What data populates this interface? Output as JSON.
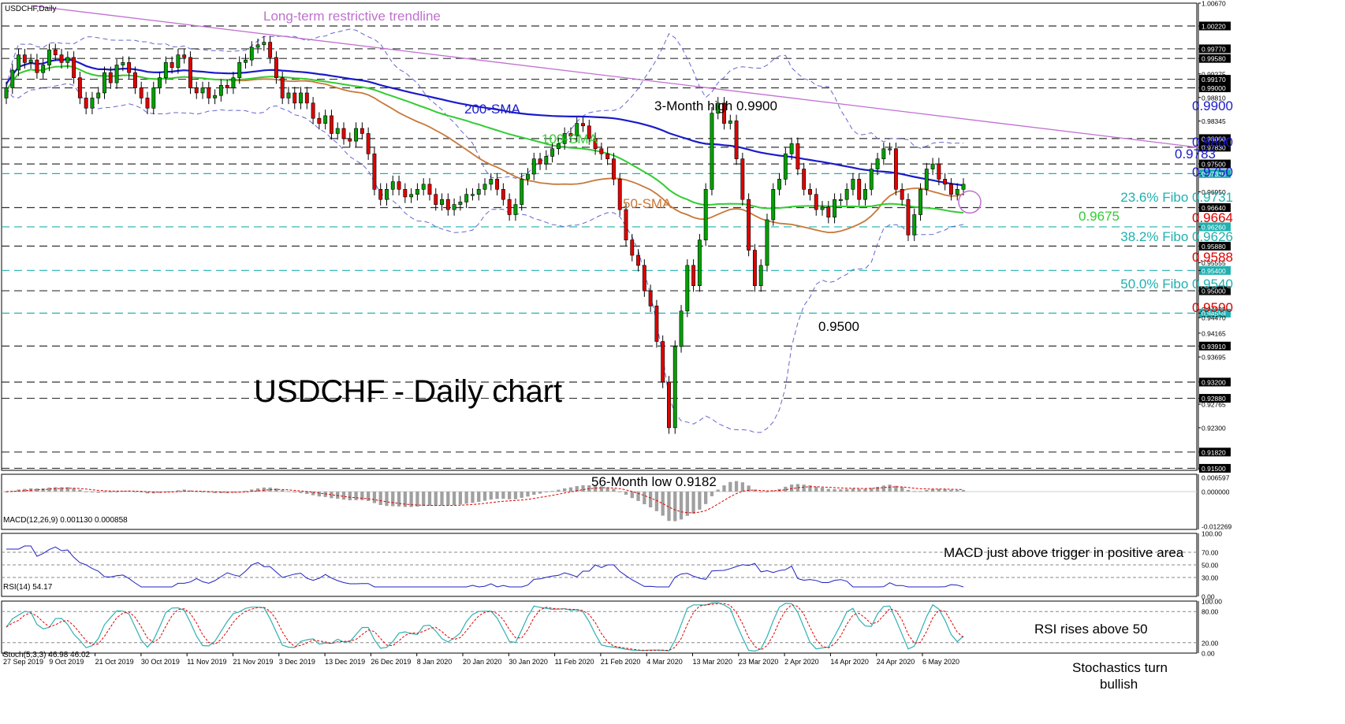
{
  "window": {
    "symbol_label": "USDCHF,Daily"
  },
  "colors": {
    "background": "#ffffff",
    "axis": "#000000",
    "bull_candle": "#00a000",
    "bear_candle": "#e00000",
    "sma200": "#1a1acc",
    "sma100": "#33cc33",
    "sma50": "#c87838",
    "trendline": "#c070d0",
    "bollinger": "#6666cc",
    "level_line": "#333333",
    "fibo_line": "#20b0b0",
    "macd_hist": "#a0a0a0",
    "macd_signal": "#e00000",
    "rsi_line": "#2020c0",
    "stoch_main": "#30b0b0",
    "stoch_signal": "#e00000",
    "price_blue": "#1a1acc",
    "price_red": "#e00000",
    "fibo_text": "#20b0b0",
    "green_text": "#33cc33",
    "orange_text": "#c87838",
    "purple_text": "#c070d0",
    "circle": "#c070d0"
  },
  "chart_data": [
    {
      "type": "candlestick",
      "title": "USDCHF - Daily chart",
      "symbol": "USDCHF,Daily",
      "ylim": [
        0.9146,
        1.0067
      ],
      "x_tick_labels": [
        "27 Sep 2019",
        "9 Oct 2019",
        "21 Oct 2019",
        "30 Oct 2019",
        "11 Nov 2019",
        "21 Nov 2019",
        "3 Dec 2019",
        "13 Dec 2019",
        "26 Dec 2019",
        "8 Jan 2020",
        "20 Jan 2020",
        "30 Jan 2020",
        "11 Feb 2020",
        "21 Feb 2020",
        "4 Mar 2020",
        "13 Mar 2020",
        "23 Mar 2020",
        "2 Apr 2020",
        "14 Apr 2020",
        "24 Apr 2020",
        "6 May 2020"
      ],
      "y_tick_labels": [
        "1.00670",
        "1.00220",
        "0.99770",
        "0.99580",
        "0.99275",
        "0.99170",
        "0.99000",
        "0.98810",
        "0.98345",
        "0.98000",
        "0.97830",
        "0.97500",
        "0.97310",
        "0.96950",
        "0.96640",
        "0.96260",
        "0.95880",
        "0.95555",
        "0.95400",
        "0.95000",
        "0.94635",
        "0.94559",
        "0.94470",
        "0.94165",
        "0.93910",
        "0.93695",
        "0.93200",
        "0.92880",
        "0.92765",
        "0.92300",
        "0.91820",
        "0.91500"
      ],
      "highlighted_levels": [
        "1.00220",
        "0.99770",
        "0.99580",
        "0.99170",
        "0.99000",
        "0.98000",
        "0.97830",
        "0.97500",
        "0.97310",
        "0.96640",
        "0.96260",
        "0.95880",
        "0.95400",
        "0.95000",
        "0.94559",
        "0.93910",
        "0.93200",
        "0.92880",
        "0.91820",
        "0.91500"
      ],
      "closes": [
        0.99,
        0.9935,
        0.9965,
        0.995,
        0.9955,
        0.993,
        0.9945,
        0.9975,
        0.9965,
        0.995,
        0.996,
        0.992,
        0.988,
        0.986,
        0.988,
        0.989,
        0.993,
        0.991,
        0.9945,
        0.995,
        0.993,
        0.99,
        0.988,
        0.986,
        0.99,
        0.992,
        0.995,
        0.994,
        0.9965,
        0.996,
        0.99,
        0.989,
        0.99,
        0.988,
        0.9885,
        0.9905,
        0.99,
        0.992,
        0.995,
        0.9955,
        0.998,
        0.9985,
        0.999,
        0.996,
        0.992,
        0.988,
        0.989,
        0.987,
        0.989,
        0.987,
        0.984,
        0.983,
        0.9845,
        0.981,
        0.982,
        0.98,
        0.9795,
        0.982,
        0.981,
        0.977,
        0.97,
        0.968,
        0.97,
        0.9715,
        0.97,
        0.9685,
        0.969,
        0.97,
        0.971,
        0.969,
        0.967,
        0.968,
        0.966,
        0.967,
        0.9675,
        0.969,
        0.969,
        0.97,
        0.971,
        0.972,
        0.97,
        0.968,
        0.965,
        0.967,
        0.972,
        0.973,
        0.976,
        0.975,
        0.9765,
        0.978,
        0.979,
        0.981,
        0.9805,
        0.983,
        0.9825,
        0.98,
        0.978,
        0.977,
        0.976,
        0.972,
        0.966,
        0.96,
        0.957,
        0.955,
        0.95,
        0.947,
        0.94,
        0.932,
        0.923,
        0.939,
        0.946,
        0.955,
        0.951,
        0.96,
        0.97,
        0.985,
        0.987,
        0.983,
        0.9835,
        0.976,
        0.968,
        0.958,
        0.951,
        0.955,
        0.964,
        0.97,
        0.972,
        0.977,
        0.979,
        0.974,
        0.97,
        0.969,
        0.966,
        0.9665,
        0.9645,
        0.968,
        0.968,
        0.97,
        0.972,
        0.968,
        0.97,
        0.974,
        0.976,
        0.978,
        0.978,
        0.97,
        0.968,
        0.961,
        0.965,
        0.97,
        0.974,
        0.975,
        0.972,
        0.971,
        0.969,
        0.97,
        0.971
      ],
      "series_text": [
        "200-SMA",
        "100-SMA",
        "50-SMA",
        "Long-term restrictive trendline"
      ],
      "annotations": {
        "high": "3-Month high 0.9900",
        "low": "56-Month low 0.9182",
        "dip": "0.9500",
        "level_0675": "0.9675"
      },
      "right_labels": [
        {
          "text": "0.9900",
          "color": "blue"
        },
        {
          "text": "0.9800",
          "color": "blue"
        },
        {
          "text": "0.9783",
          "color": "blue"
        },
        {
          "text": "0.9750",
          "color": "blue"
        },
        {
          "text": "23.6% Fibo 0.9731",
          "color": "fibo"
        },
        {
          "text": "0.9664",
          "color": "red"
        },
        {
          "text": "38.2% Fibo 0.9626",
          "color": "fibo"
        },
        {
          "text": "0.9588",
          "color": "red"
        },
        {
          "text": "50.0% Fibo 0.9540",
          "color": "fibo"
        },
        {
          "text": "0.9500",
          "color": "red"
        }
      ]
    },
    {
      "type": "bar",
      "title": "MACD(12,26,9) 0.001130 0.000858",
      "y_tick_labels": [
        "0.006597",
        "0.000000",
        "-0.012269"
      ],
      "annotation": "MACD just above trigger in positive area"
    },
    {
      "type": "line",
      "title": "RSI(14) 54.17",
      "y_tick_labels": [
        "100.00",
        "70.00",
        "50.00",
        "30.00",
        "0.00"
      ],
      "annotation": "RSI rises above 50"
    },
    {
      "type": "line",
      "title": "Stoch(5,3,3) 46.98 46.02",
      "y_tick_labels": [
        "100.00",
        "80.00",
        "20.00",
        "0.00"
      ],
      "annotation_line1": "Stochastics turn",
      "annotation_line2": "bullish"
    }
  ]
}
